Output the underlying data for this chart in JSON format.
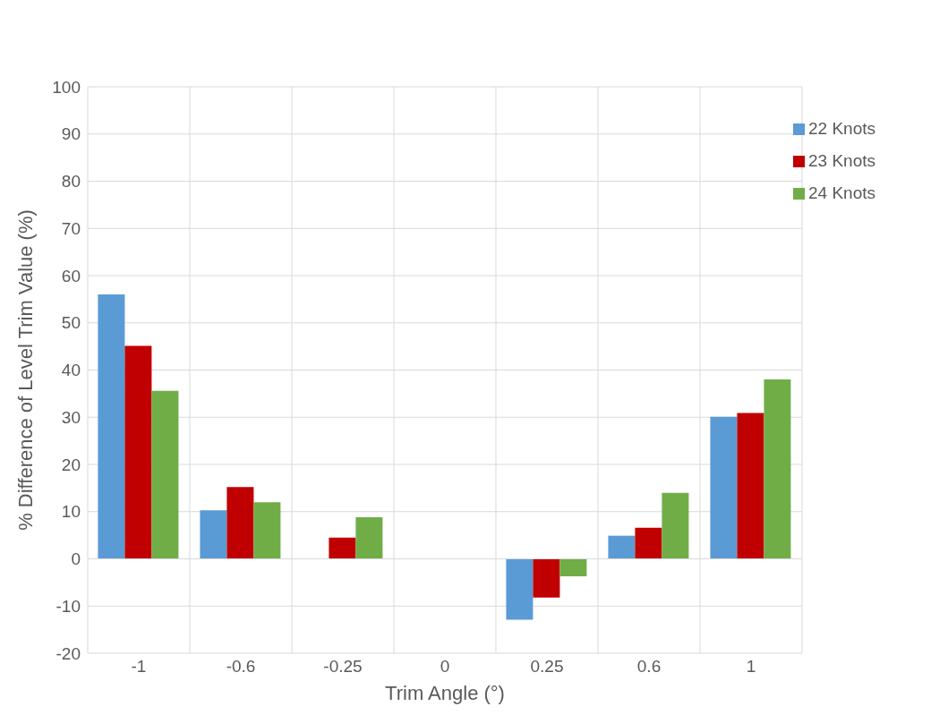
{
  "chart_data": {
    "type": "bar",
    "xlabel": "Trim Angle (°)",
    "ylabel": "% Difference of Level Trim Value (%)",
    "categories": [
      "-1",
      "-0.6",
      "-0.25",
      "0",
      "0.25",
      "0.6",
      "1"
    ],
    "series": [
      {
        "name": "22 Knots",
        "color": "#5b9bd5",
        "values": [
          56.0,
          10.3,
          0,
          0,
          -12.9,
          4.9,
          30.1
        ]
      },
      {
        "name": "23 Knots",
        "color": "#c00000",
        "values": [
          45.1,
          15.2,
          4.5,
          0,
          -8.2,
          6.6,
          30.9
        ]
      },
      {
        "name": "24 Knots",
        "color": "#70ad47",
        "values": [
          35.6,
          12.0,
          8.8,
          0,
          -3.7,
          14.0,
          38.0
        ]
      }
    ],
    "ylim": [
      -20,
      100
    ],
    "yticks": [
      -20,
      -10,
      0,
      10,
      20,
      30,
      40,
      50,
      60,
      70,
      80,
      90,
      100
    ],
    "grid": true,
    "legend": "top right"
  }
}
